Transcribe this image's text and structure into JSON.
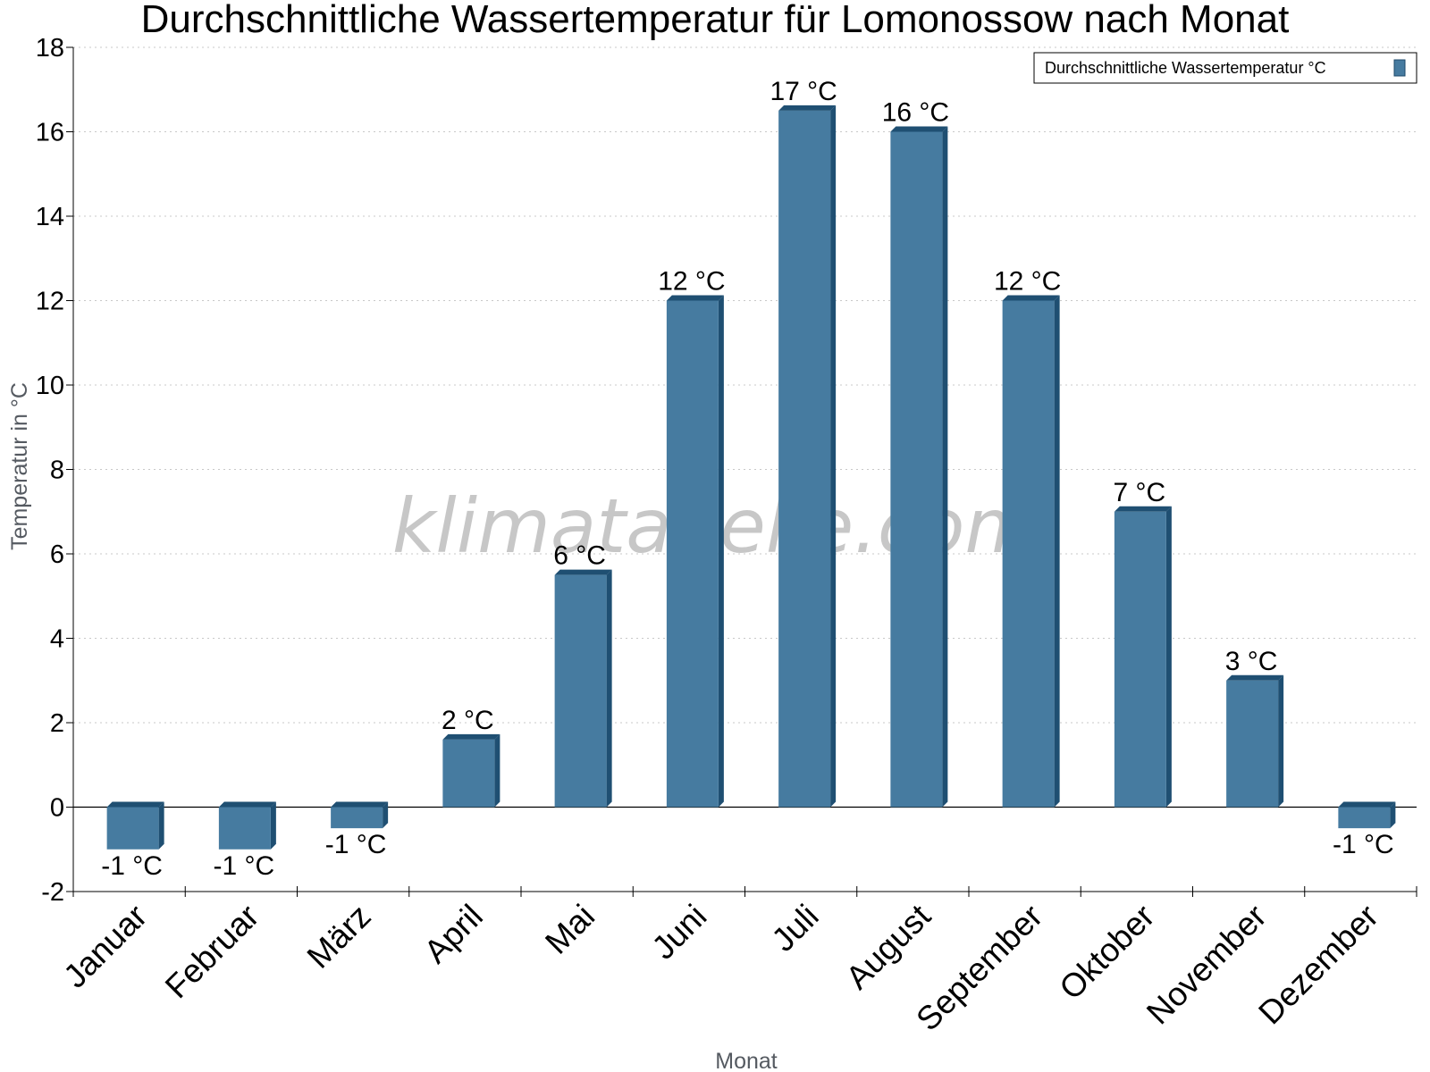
{
  "chart_data": {
    "type": "bar",
    "title": "Durchschnittliche Wassertemperatur für Lomonossow nach Monat",
    "xlabel": "Monat",
    "ylabel": "Temperatur in °C",
    "ylim": [
      -2,
      18
    ],
    "yticks": [
      "-2",
      "0",
      "2",
      "4",
      "6",
      "8",
      "10",
      "12",
      "14",
      "16",
      "18"
    ],
    "grid": true,
    "legend_position": "top-right",
    "categories": [
      "Januar",
      "Februar",
      "März",
      "April",
      "Mai",
      "Juni",
      "Juli",
      "August",
      "September",
      "Oktober",
      "November",
      "Dezember"
    ],
    "series": [
      {
        "name": "Durchschnittliche Wassertemperatur °C",
        "color": "#467ba0",
        "values": [
          -1,
          -1,
          -0.5,
          1.6,
          5.5,
          12,
          16.5,
          16,
          12,
          7,
          3,
          -0.5
        ],
        "labels": [
          "-1 °C",
          "-1 °C",
          "-1 °C",
          "2 °C",
          "6 °C",
          "12 °C",
          "17 °C",
          "16 °C",
          "12 °C",
          "7 °C",
          "3 °C",
          "-1 °C"
        ]
      }
    ],
    "watermark": "klimatabelle.com"
  }
}
